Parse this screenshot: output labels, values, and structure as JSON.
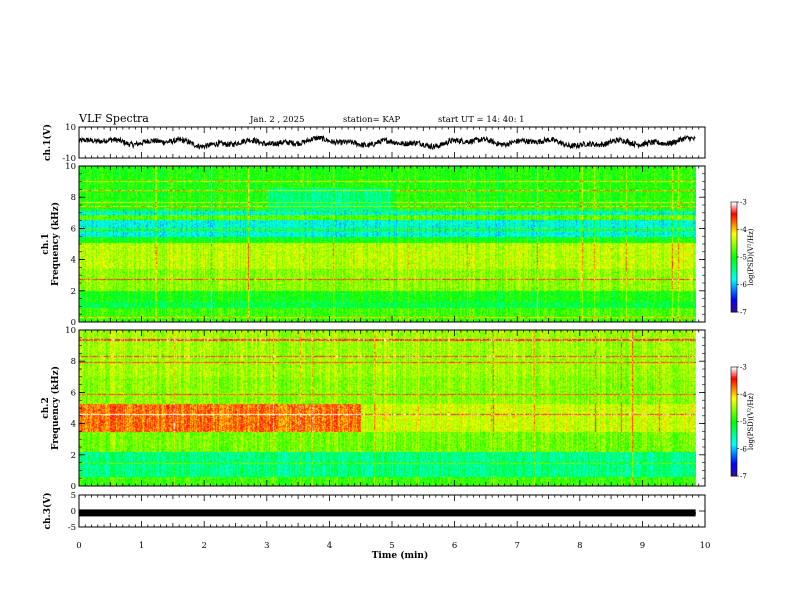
{
  "header": {
    "title": "VLF Spectra",
    "date": "Jan. 2 , 2025",
    "station": "station= KAP",
    "start": "start UT =  14: 40: 1"
  },
  "chart_data": [
    {
      "type": "line",
      "name": "ch1-waveform",
      "ylabel": "ch.1(V)",
      "ylim": [
        -10,
        10
      ],
      "yticks": [
        "10",
        "-10"
      ],
      "xlim": [
        0,
        10
      ],
      "x_extent": 9.85,
      "series": [
        {
          "name": "ch.1",
          "color": "#000000",
          "mean": 0,
          "amplitude": 4
        }
      ]
    },
    {
      "type": "heatmap",
      "name": "ch1-spectrogram",
      "ylabel": "ch.1\nFrequency (kHz)",
      "ylim": [
        0,
        10
      ],
      "yticks": [
        "0",
        "2",
        "4",
        "6",
        "8",
        "10"
      ],
      "xlim": [
        0,
        10
      ],
      "x_extent": 9.85,
      "colorbar": {
        "label": "log(PSD)(V²/Hz)",
        "range": [
          -7,
          -3
        ],
        "ticks": [
          "-3",
          "-4",
          "-5",
          "-6",
          "-7"
        ]
      }
    },
    {
      "type": "heatmap",
      "name": "ch2-spectrogram",
      "ylabel": "ch.2\nFrequency (kHz)",
      "ylim": [
        0,
        10
      ],
      "yticks": [
        "0",
        "2",
        "4",
        "6",
        "8",
        "10"
      ],
      "xlim": [
        0,
        10
      ],
      "x_extent": 9.85,
      "colorbar": {
        "label": "log(PSD)(V²/Hz)",
        "range": [
          -7,
          -3
        ],
        "ticks": [
          "-3",
          "-4",
          "-5",
          "-6",
          "-7"
        ]
      }
    },
    {
      "type": "line",
      "name": "ch3-waveform",
      "ylabel": "ch.3(V)",
      "ylim": [
        -5,
        5
      ],
      "yticks": [
        "5",
        "0",
        "-5"
      ],
      "xlim": [
        0,
        10
      ],
      "x_extent": 9.85,
      "series": [
        {
          "name": "ch.3",
          "color": "#000000",
          "mean": -0.6,
          "amplitude": 0.3
        }
      ]
    }
  ],
  "xaxis": {
    "label": "Time (min)",
    "ticks": [
      "0",
      "1",
      "2",
      "3",
      "4",
      "5",
      "6",
      "7",
      "8",
      "9",
      "10"
    ]
  },
  "colors": {
    "background": "#ffffff",
    "ink": "#000000",
    "colormap": [
      "#3b0f8c",
      "#0000ff",
      "#00ffff",
      "#00ff00",
      "#ffff00",
      "#ff0000",
      "#ffffff"
    ]
  }
}
